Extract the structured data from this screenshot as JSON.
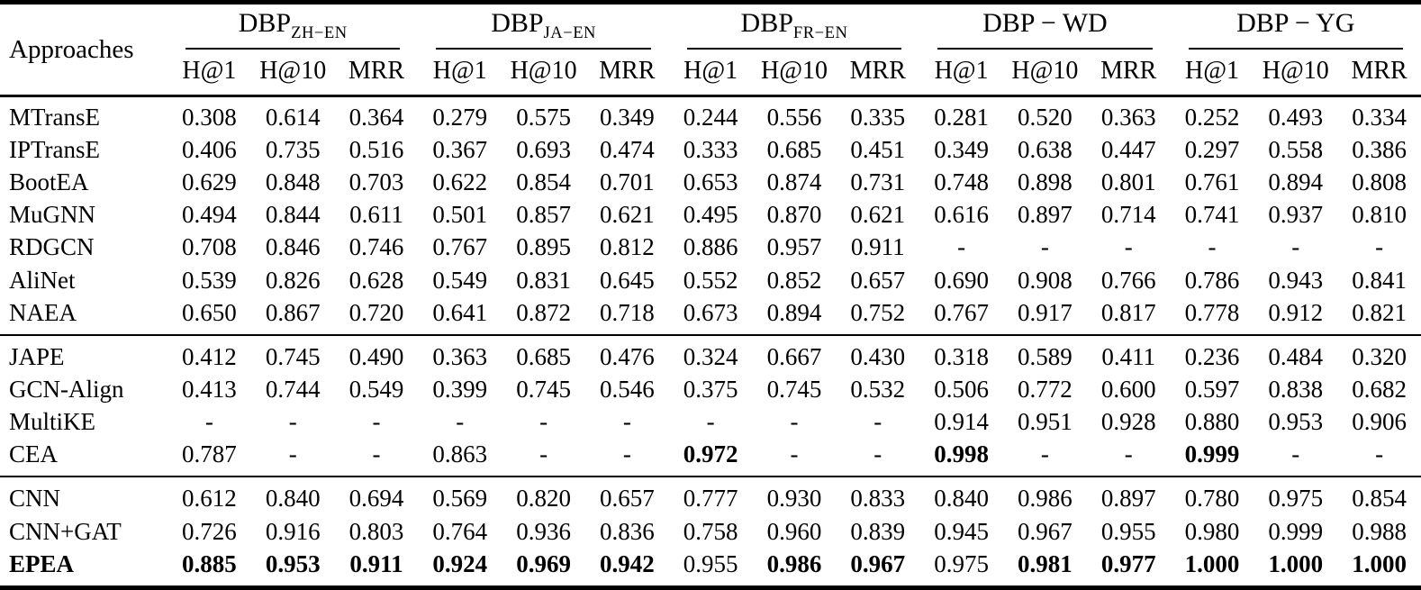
{
  "table": {
    "row_header": "Approaches",
    "metrics": [
      "H@1",
      "H@10",
      "MRR"
    ],
    "groups": [
      {
        "label": "DBP",
        "sub": "ZH−EN"
      },
      {
        "label": "DBP",
        "sub": "JA−EN"
      },
      {
        "label": "DBP",
        "sub": "FR−EN"
      },
      {
        "label": "DBP − WD",
        "sub": ""
      },
      {
        "label": "DBP − YG",
        "sub": ""
      }
    ],
    "sections": [
      {
        "rows": [
          {
            "name": "MTransE",
            "values": [
              "0.308",
              "0.614",
              "0.364",
              "0.279",
              "0.575",
              "0.349",
              "0.244",
              "0.556",
              "0.335",
              "0.281",
              "0.520",
              "0.363",
              "0.252",
              "0.493",
              "0.334"
            ]
          },
          {
            "name": "IPTransE",
            "values": [
              "0.406",
              "0.735",
              "0.516",
              "0.367",
              "0.693",
              "0.474",
              "0.333",
              "0.685",
              "0.451",
              "0.349",
              "0.638",
              "0.447",
              "0.297",
              "0.558",
              "0.386"
            ]
          },
          {
            "name": "BootEA",
            "values": [
              "0.629",
              "0.848",
              "0.703",
              "0.622",
              "0.854",
              "0.701",
              "0.653",
              "0.874",
              "0.731",
              "0.748",
              "0.898",
              "0.801",
              "0.761",
              "0.894",
              "0.808"
            ]
          },
          {
            "name": "MuGNN",
            "values": [
              "0.494",
              "0.844",
              "0.611",
              "0.501",
              "0.857",
              "0.621",
              "0.495",
              "0.870",
              "0.621",
              "0.616",
              "0.897",
              "0.714",
              "0.741",
              "0.937",
              "0.810"
            ]
          },
          {
            "name": "RDGCN",
            "values": [
              "0.708",
              "0.846",
              "0.746",
              "0.767",
              "0.895",
              "0.812",
              "0.886",
              "0.957",
              "0.911",
              "-",
              "-",
              "-",
              "-",
              "-",
              "-"
            ]
          },
          {
            "name": "AliNet",
            "values": [
              "0.539",
              "0.826",
              "0.628",
              "0.549",
              "0.831",
              "0.645",
              "0.552",
              "0.852",
              "0.657",
              "0.690",
              "0.908",
              "0.766",
              "0.786",
              "0.943",
              "0.841"
            ]
          },
          {
            "name": "NAEA",
            "values": [
              "0.650",
              "0.867",
              "0.720",
              "0.641",
              "0.872",
              "0.718",
              "0.673",
              "0.894",
              "0.752",
              "0.767",
              "0.917",
              "0.817",
              "0.778",
              "0.912",
              "0.821"
            ]
          }
        ]
      },
      {
        "rows": [
          {
            "name": "JAPE",
            "values": [
              "0.412",
              "0.745",
              "0.490",
              "0.363",
              "0.685",
              "0.476",
              "0.324",
              "0.667",
              "0.430",
              "0.318",
              "0.589",
              "0.411",
              "0.236",
              "0.484",
              "0.320"
            ]
          },
          {
            "name": "GCN-Align",
            "values": [
              "0.413",
              "0.744",
              "0.549",
              "0.399",
              "0.745",
              "0.546",
              "0.375",
              "0.745",
              "0.532",
              "0.506",
              "0.772",
              "0.600",
              "0.597",
              "0.838",
              "0.682"
            ]
          },
          {
            "name": "MultiKE",
            "values": [
              "-",
              "-",
              "-",
              "-",
              "-",
              "-",
              "-",
              "-",
              "-",
              "0.914",
              "0.951",
              "0.928",
              "0.880",
              "0.953",
              "0.906"
            ]
          },
          {
            "name": "CEA",
            "values": [
              "0.787",
              "-",
              "-",
              "0.863",
              "-",
              "-",
              "0.972",
              "-",
              "-",
              "0.998",
              "-",
              "-",
              "0.999",
              "-",
              "-"
            ],
            "bold": [
              false,
              false,
              false,
              false,
              false,
              false,
              true,
              false,
              false,
              true,
              false,
              false,
              true,
              false,
              false
            ]
          }
        ]
      },
      {
        "rows": [
          {
            "name": "CNN",
            "values": [
              "0.612",
              "0.840",
              "0.694",
              "0.569",
              "0.820",
              "0.657",
              "0.777",
              "0.930",
              "0.833",
              "0.840",
              "0.986",
              "0.897",
              "0.780",
              "0.975",
              "0.854"
            ]
          },
          {
            "name": "CNN+GAT",
            "values": [
              "0.726",
              "0.916",
              "0.803",
              "0.764",
              "0.936",
              "0.836",
              "0.758",
              "0.960",
              "0.839",
              "0.945",
              "0.967",
              "0.955",
              "0.980",
              "0.999",
              "0.988"
            ]
          },
          {
            "name": "EPEA",
            "bold_name": true,
            "values": [
              "0.885",
              "0.953",
              "0.911",
              "0.924",
              "0.969",
              "0.942",
              "0.955",
              "0.986",
              "0.967",
              "0.975",
              "0.981",
              "0.977",
              "1.000",
              "1.000",
              "1.000"
            ],
            "bold": [
              true,
              true,
              true,
              true,
              true,
              true,
              false,
              true,
              true,
              false,
              true,
              true,
              true,
              true,
              true
            ]
          }
        ]
      }
    ]
  }
}
